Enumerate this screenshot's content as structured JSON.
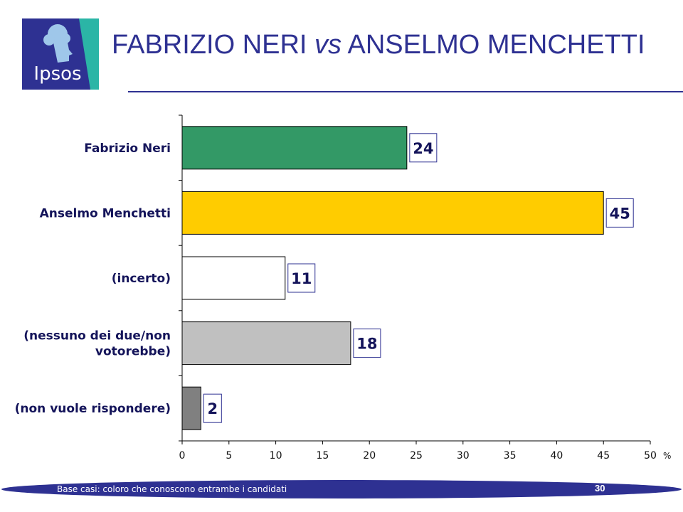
{
  "header": {
    "logo_text": "Ipsos",
    "title_part1": "FABRIZIO NERI ",
    "title_part2": "vs",
    "title_part3": " ANSELMO MENCHETTI"
  },
  "footer": {
    "note": "Base casi: coloro che conoscono entrambe i candidati",
    "page_number": "30"
  },
  "colors": {
    "brand_blue": "#2e3192",
    "logo_teal": "#2bb5a6",
    "text_navy": "#14145a"
  },
  "chart_data": {
    "type": "bar",
    "orientation": "horizontal",
    "categories": [
      [
        "Fabrizio Neri"
      ],
      [
        "Anselmo Menchetti"
      ],
      [
        "(incerto)"
      ],
      [
        "(nessuno dei due/non",
        "votorebbe)"
      ],
      [
        "(non vuole rispondere)"
      ]
    ],
    "values": [
      24,
      45,
      11,
      18,
      2
    ],
    "colors": [
      "#339966",
      "#ffcc00",
      "#ffffff",
      "#c0c0c0",
      "#808080"
    ],
    "xlim": [
      0,
      50
    ],
    "xticks": [
      0,
      5,
      10,
      15,
      20,
      25,
      30,
      35,
      40,
      45,
      50
    ],
    "x_unit": "%",
    "grid": false,
    "legend": "none"
  }
}
